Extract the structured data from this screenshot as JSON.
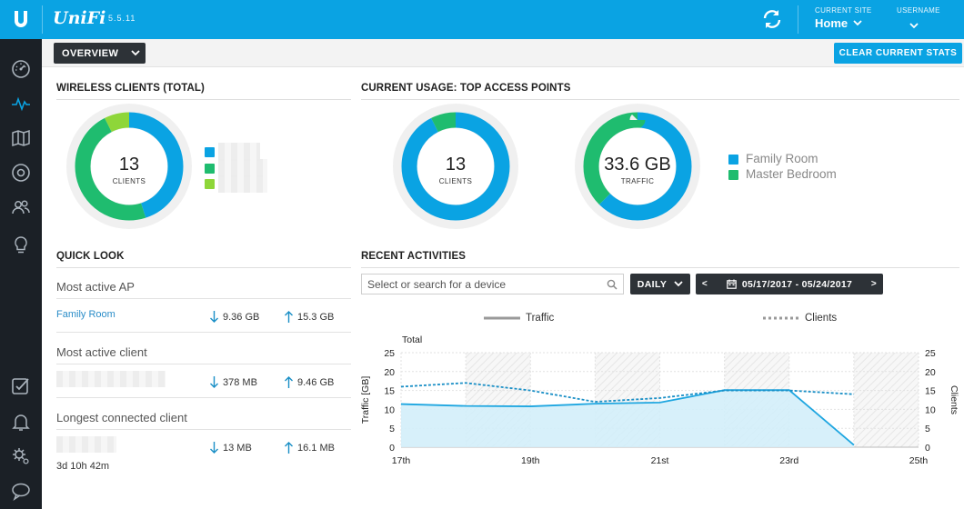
{
  "app": {
    "brand": "UniFi",
    "version": "5.5.11"
  },
  "header": {
    "current_site_label": "CURRENT SITE",
    "current_site_value": "Home",
    "username_label": "USERNAME",
    "accent": "#0aa3e3"
  },
  "toolbar": {
    "overview_label": "OVERVIEW",
    "clear_label": "CLEAR CURRENT STATS"
  },
  "wireless_clients": {
    "title": "WIRELESS CLIENTS (TOTAL)",
    "count": "13",
    "count_label": "CLIENTS",
    "legend_colors": [
      "#0aa3e3",
      "#1fbc6f",
      "#8ed639"
    ]
  },
  "top_aps": {
    "title": "CURRENT USAGE: TOP ACCESS POINTS",
    "clients_count": "13",
    "clients_label": "CLIENTS",
    "traffic_value": "33.6 GB",
    "traffic_label": "TRAFFIC",
    "legend": [
      {
        "name": "Family Room",
        "color": "#0aa3e3"
      },
      {
        "name": "Master Bedroom",
        "color": "#1fbc6f"
      }
    ]
  },
  "quick_look": {
    "title": "QUICK LOOK",
    "most_active_ap_label": "Most active AP",
    "most_active_ap_name": "Family Room",
    "most_active_ap_down": "9.36 GB",
    "most_active_ap_up": "15.3 GB",
    "most_active_client_label": "Most active client",
    "most_active_client_down": "378 MB",
    "most_active_client_up": "9.46 GB",
    "longest_client_label": "Longest connected client",
    "longest_client_down": "13 MB",
    "longest_client_up": "16.1 MB",
    "longest_client_duration": "3d 10h 42m"
  },
  "recent_activities": {
    "title": "RECENT ACTIVITIES",
    "search_placeholder": "Select or search for a device",
    "period_label": "DAILY",
    "date_range": "05/17/2017 - 05/24/2017",
    "prev_arrow": "<",
    "next_arrow": ">"
  },
  "chart_data": {
    "type": "line",
    "title": "Total",
    "ylabel_left": "Traffic [GB]",
    "ylabel_right": "Clients",
    "legend_traffic": "Traffic",
    "legend_clients": "Clients",
    "ylim": [
      0,
      25
    ],
    "yticks": [
      "0",
      "5",
      "10",
      "15",
      "20",
      "25"
    ],
    "xtick_labels": [
      "17th",
      "19th",
      "21st",
      "23rd",
      "25th"
    ],
    "series": [
      {
        "name": "Traffic",
        "style": "solid-area",
        "color": "#1ea6e0",
        "x": [
          17,
          18,
          19,
          20,
          21,
          22,
          23,
          24
        ],
        "values": [
          11.4,
          10.9,
          10.8,
          11.5,
          11.8,
          15.1,
          15.1,
          0.6
        ]
      },
      {
        "name": "Clients",
        "style": "dotted",
        "color": "#1a8fc6",
        "x": [
          17,
          18,
          19,
          20,
          21,
          22,
          23,
          24
        ],
        "values": [
          16,
          17,
          15,
          12,
          13,
          15,
          15,
          14
        ]
      }
    ],
    "shaded_days": [
      18,
      20,
      22,
      24
    ],
    "grid": true,
    "legend_position": "top"
  }
}
